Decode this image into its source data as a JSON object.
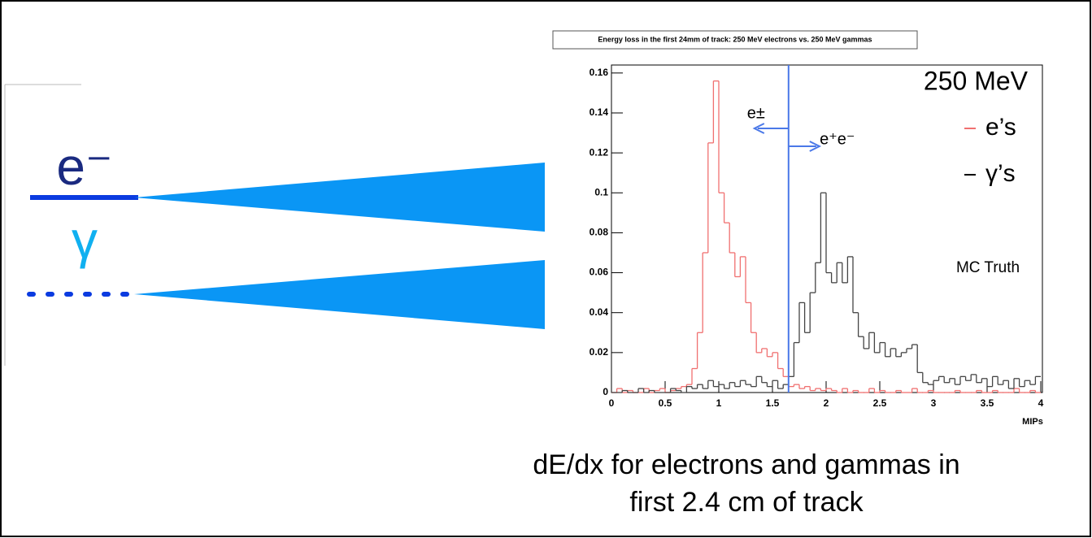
{
  "diagram": {
    "labels": [
      "e⁻",
      "γ"
    ]
  },
  "chart_data": {
    "type": "histogram",
    "title": "Energy loss in the first 24mm of track: 250 MeV electrons vs. 250 MeV gammas",
    "x_label": "MIPs",
    "caption": [
      "dE/dx for electrons and gammas in",
      "first 2.4 cm of track"
    ],
    "legend_title": "250 MeV",
    "annotations": {
      "left": "e±",
      "right": "e⁺e⁻",
      "note": "MC Truth"
    },
    "cut": 1.65,
    "cut_color": "#4a78e8",
    "xlim": [
      0,
      4
    ],
    "ylim": [
      0,
      0.164
    ],
    "xticks": [
      0,
      0.5,
      1,
      1.5,
      2,
      2.5,
      3,
      3.5,
      4
    ],
    "yticks": [
      0,
      0.02,
      0.04,
      0.06,
      0.08,
      0.1,
      0.12,
      0.14,
      0.16
    ],
    "bins": [
      0,
      0.05,
      0.1,
      0.15,
      0.2,
      0.25,
      0.3,
      0.35,
      0.4,
      0.45,
      0.5,
      0.55,
      0.6,
      0.65,
      0.7,
      0.75,
      0.8,
      0.85,
      0.9,
      0.95,
      1,
      1.05,
      1.1,
      1.15,
      1.2,
      1.25,
      1.3,
      1.35,
      1.4,
      1.45,
      1.5,
      1.55,
      1.6,
      1.65,
      1.7,
      1.75,
      1.8,
      1.85,
      1.9,
      1.95,
      2,
      2.05,
      2.1,
      2.15,
      2.2,
      2.25,
      2.3,
      2.35,
      2.4,
      2.45,
      2.5,
      2.55,
      2.6,
      2.65,
      2.7,
      2.75,
      2.8,
      2.85,
      2.9,
      2.95,
      3,
      3.05,
      3.1,
      3.15,
      3.2,
      3.25,
      3.3,
      3.35,
      3.4,
      3.45,
      3.5,
      3.55,
      3.6,
      3.65,
      3.7,
      3.75,
      3.8,
      3.85,
      3.9,
      3.95,
      4
    ],
    "series": [
      {
        "name": "e’s",
        "color": "#f07070",
        "values": [
          0,
          0.002,
          0,
          0.001,
          0,
          0,
          0.002,
          0,
          0.001,
          0.002,
          0,
          0.001,
          0.002,
          0.003,
          0.004,
          0.012,
          0.03,
          0.07,
          0.125,
          0.156,
          0.1,
          0.085,
          0.07,
          0.058,
          0.068,
          0.045,
          0.03,
          0.02,
          0.022,
          0.018,
          0.02,
          0.012,
          0.008,
          0.003,
          0.004,
          0.002,
          0.003,
          0.001,
          0.002,
          0.001,
          0.002,
          0.001,
          0,
          0.002,
          0,
          0.001,
          0,
          0,
          0.002,
          0,
          0.001,
          0,
          0,
          0.001,
          0,
          0,
          0.002,
          0,
          0,
          0.001,
          0,
          0,
          0,
          0,
          0.001,
          0,
          0,
          0,
          0.001,
          0,
          0,
          0.001,
          0,
          0,
          0,
          0.002,
          0,
          0,
          0.001,
          0
        ]
      },
      {
        "name": "γ’s",
        "color": "#444444",
        "values": [
          0,
          0,
          0.001,
          0,
          0,
          0.002,
          0,
          0.001,
          0,
          0,
          0,
          0.002,
          0.001,
          0,
          0.003,
          0.002,
          0.004,
          0.002,
          0.006,
          0.003,
          0.004,
          0.002,
          0.005,
          0.003,
          0.006,
          0.004,
          0.003,
          0.008,
          0.005,
          0.003,
          0.006,
          0.002,
          0.004,
          0.008,
          0.025,
          0.045,
          0.03,
          0.05,
          0.065,
          0.1,
          0.06,
          0.055,
          0.065,
          0.055,
          0.068,
          0.04,
          0.028,
          0.022,
          0.03,
          0.02,
          0.025,
          0.018,
          0.022,
          0.018,
          0.02,
          0.022,
          0.024,
          0.01,
          0.005,
          0.004,
          0.006,
          0.008,
          0.005,
          0.007,
          0.004,
          0.008,
          0.006,
          0.009,
          0.005,
          0.007,
          0.003,
          0.008,
          0.004,
          0.006,
          0.002,
          0.007,
          0.003,
          0.006,
          0.004,
          0.008
        ]
      }
    ]
  }
}
